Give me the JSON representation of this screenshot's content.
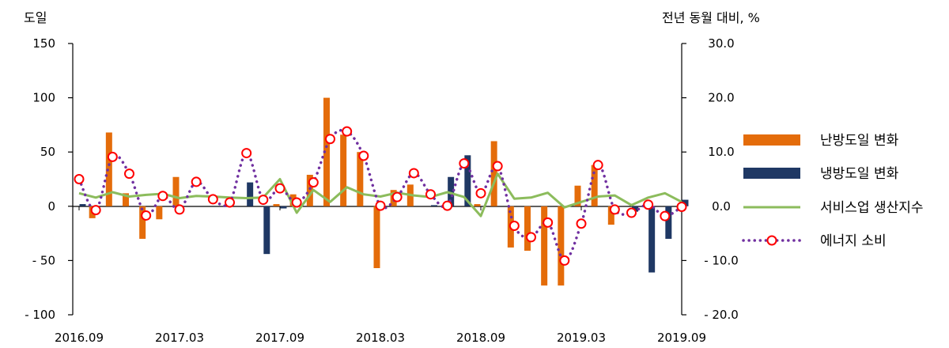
{
  "chart_data": {
    "type": "bar",
    "title": "",
    "y_left": {
      "label": "도일",
      "ticks": [
        "150",
        "100",
        "50",
        "0",
        "- 50",
        "- 100"
      ],
      "ylim": [
        -100,
        150
      ]
    },
    "y_right": {
      "label": "전년 동월 대비, %",
      "ticks": [
        "30.0",
        "20.0",
        "10.0",
        "0.0",
        "- 10.0",
        "- 20.0"
      ],
      "ylim": [
        -20,
        30
      ]
    },
    "x_tick_labels": [
      "2016.09",
      "2017.03",
      "2017.09",
      "2018.03",
      "2018.09",
      "2019.03",
      "2019.09"
    ],
    "x": [
      "2016.09",
      "2016.10",
      "2016.11",
      "2016.12",
      "2017.01",
      "2017.02",
      "2017.03",
      "2017.04",
      "2017.05",
      "2017.06",
      "2017.07",
      "2017.08",
      "2017.09",
      "2017.10",
      "2017.11",
      "2017.12",
      "2018.01",
      "2018.02",
      "2018.03",
      "2018.04",
      "2018.05",
      "2018.06",
      "2018.07",
      "2018.08",
      "2018.09",
      "2018.10",
      "2018.11",
      "2018.12",
      "2019.01",
      "2019.02",
      "2019.03",
      "2019.04",
      "2019.05",
      "2019.06",
      "2019.07",
      "2019.08",
      "2019.09"
    ],
    "series": [
      {
        "name": "난방도일 변화",
        "axis": "left",
        "kind": "bar",
        "color": "#e46c0a",
        "values": [
          0,
          -11,
          68,
          12,
          -30,
          -12,
          27,
          0,
          0,
          0,
          0,
          0,
          2,
          11,
          29,
          100,
          66,
          50,
          -57,
          15,
          20,
          0,
          0,
          0,
          2,
          60,
          -38,
          -41,
          -73,
          -73,
          19,
          38,
          -17,
          0,
          0,
          0,
          0
        ]
      },
      {
        "name": "냉방도일 변화",
        "axis": "left",
        "kind": "bar",
        "color": "#1f3864",
        "values": [
          2,
          0,
          0,
          0,
          0,
          0,
          0,
          0,
          0,
          0,
          22,
          -44,
          -2,
          0,
          0,
          0,
          0,
          0,
          0,
          0,
          0,
          1,
          27,
          47,
          0,
          0,
          0,
          0,
          0,
          0,
          0,
          0,
          0,
          -5,
          -61,
          -30,
          6
        ]
      },
      {
        "name": "서비스업 생산지수",
        "axis": "right",
        "kind": "line",
        "color": "#8cbc5c",
        "values": [
          2.4,
          1.6,
          2.6,
          1.8,
          2.1,
          2.3,
          1.5,
          1.9,
          1.8,
          1.6,
          1.5,
          1.6,
          5.0,
          -1.2,
          3.0,
          0.8,
          3.5,
          2.2,
          1.8,
          2.5,
          2.0,
          1.7,
          2.6,
          1.7,
          -1.8,
          6.0,
          1.4,
          1.6,
          2.5,
          -0.2,
          0.8,
          1.8,
          2.0,
          0.2,
          1.6,
          2.4,
          0.8
        ]
      },
      {
        "name": "에너지 소비",
        "axis": "right",
        "kind": "dotted-line-markers",
        "color": "#7030a0",
        "marker_color": "#ff0000",
        "values": [
          5.0,
          -0.7,
          9.1,
          6.0,
          -1.7,
          1.9,
          -0.6,
          4.5,
          1.3,
          0.7,
          9.8,
          1.2,
          3.3,
          0.7,
          4.4,
          12.4,
          13.8,
          9.3,
          0.1,
          1.7,
          6.1,
          2.2,
          0.1,
          7.9,
          2.4,
          7.4,
          -3.6,
          -5.7,
          -3.0,
          -10.0,
          -3.2,
          7.6,
          -0.6,
          -1.2,
          0.3,
          -1.8,
          -0.1
        ]
      }
    ]
  },
  "legend": {
    "items": [
      {
        "label": "난방도일 변화",
        "color": "#e46c0a"
      },
      {
        "label": "냉방도일 변화",
        "color": "#1f3864"
      },
      {
        "label": "서비스업 생산지수",
        "color": "#8cbc5c"
      },
      {
        "label": "에너지 소비",
        "color": "#7030a0",
        "marker_color": "#ff0000"
      }
    ]
  }
}
